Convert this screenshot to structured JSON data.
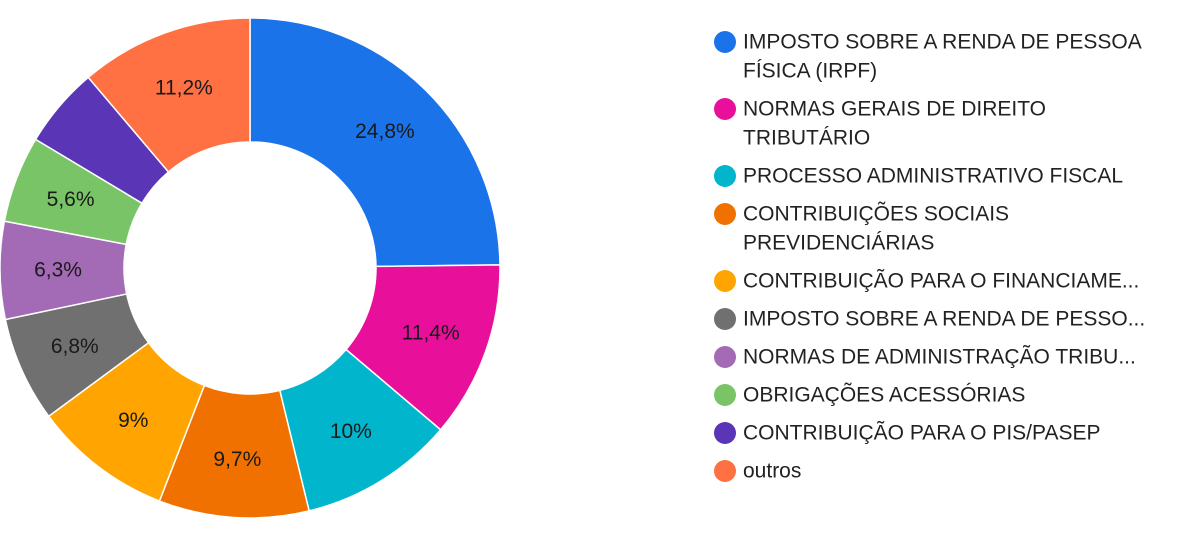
{
  "chart_data": {
    "type": "pie",
    "donut": true,
    "legend_position": "right",
    "slices": [
      {
        "label_lines": [
          "IMPOSTO SOBRE A RENDA DE PESSOA",
          "FÍSICA (IRPF)"
        ],
        "value": 24.8,
        "value_label": "24,8%",
        "color": "#1a73e8",
        "show_label": true
      },
      {
        "label_lines": [
          "NORMAS GERAIS DE DIREITO",
          "TRIBUTÁRIO"
        ],
        "value": 11.4,
        "value_label": "11,4%",
        "color": "#e8109a",
        "show_label": true
      },
      {
        "label_lines": [
          "PROCESSO ADMINISTRATIVO FISCAL"
        ],
        "value": 10.0,
        "value_label": "10%",
        "color": "#00b5cc",
        "show_label": true
      },
      {
        "label_lines": [
          "CONTRIBUIÇÕES SOCIAIS",
          "PREVIDENCIÁRIAS"
        ],
        "value": 9.7,
        "value_label": "9,7%",
        "color": "#f07100",
        "show_label": true
      },
      {
        "label_lines": [
          "CONTRIBUIÇÃO PARA O FINANCIAME..."
        ],
        "value": 9.0,
        "value_label": "9%",
        "color": "#ffa400",
        "show_label": true
      },
      {
        "label_lines": [
          "IMPOSTO SOBRE A RENDA DE PESSO..."
        ],
        "value": 6.8,
        "value_label": "6,8%",
        "color": "#707070",
        "show_label": true
      },
      {
        "label_lines": [
          "NORMAS DE ADMINISTRAÇÃO TRIBU..."
        ],
        "value": 6.3,
        "value_label": "6,3%",
        "color": "#a36ab5",
        "show_label": true
      },
      {
        "label_lines": [
          "OBRIGAÇÕES ACESSÓRIAS"
        ],
        "value": 5.6,
        "value_label": "5,6%",
        "color": "#78c467",
        "show_label": true
      },
      {
        "label_lines": [
          "CONTRIBUIÇÃO PARA O PIS/PASEP"
        ],
        "value": 5.2,
        "value_label": "",
        "color": "#5a35b5",
        "show_label": false
      },
      {
        "label_lines": [
          "outros"
        ],
        "value": 11.2,
        "value_label": "11,2%",
        "color": "#ff7043",
        "show_label": true
      }
    ]
  }
}
